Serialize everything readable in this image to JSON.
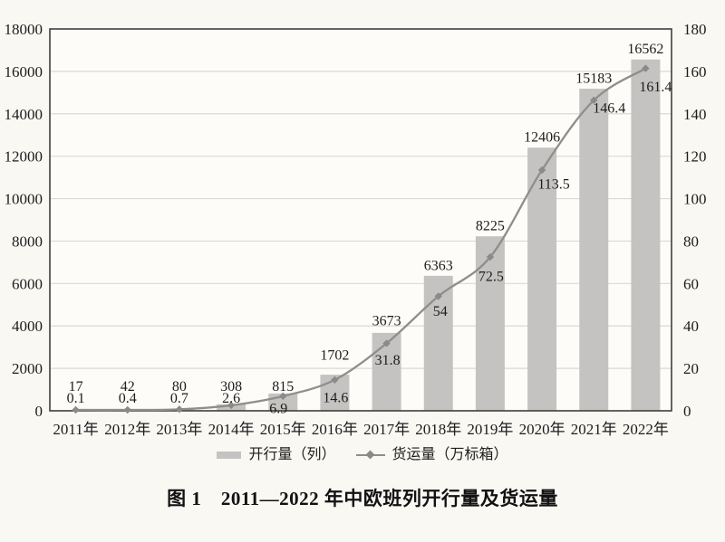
{
  "chart_data": {
    "type": "bar+line combo",
    "title": "图 1　2011—2022 年中欧班列开行量及货运量",
    "categories": [
      "2011年",
      "2012年",
      "2013年",
      "2014年",
      "2015年",
      "2016年",
      "2017年",
      "2018年",
      "2019年",
      "2020年",
      "2021年",
      "2022年"
    ],
    "series": [
      {
        "name": "开行量（列）",
        "type": "bar",
        "axis": "left",
        "color": "#c4c3c1",
        "values": [
          17,
          42,
          80,
          308,
          815,
          1702,
          3673,
          6363,
          8225,
          12406,
          15183,
          16562
        ],
        "labels": [
          "17",
          "42",
          "80",
          "308",
          "815",
          "1702",
          "3673",
          "6363",
          "8225",
          "12406",
          "15183",
          "16562"
        ]
      },
      {
        "name": "货运量（万标箱）",
        "type": "line",
        "axis": "right",
        "color": "#8f8e8c",
        "marker": "diamond",
        "marker_color": "#8a8a88",
        "values": [
          0.1,
          0.4,
          0.7,
          2.6,
          6.9,
          14.6,
          31.8,
          54,
          72.5,
          113.5,
          146.4,
          161.4
        ],
        "labels": [
          "0.1",
          "0.4",
          "0.7",
          "2.6",
          "6.9",
          "14.6",
          "31.8",
          "54",
          "72.5",
          "113.5",
          "146.4",
          "161.4"
        ]
      }
    ],
    "left_axis": {
      "min": 0,
      "max": 18000,
      "step": 2000
    },
    "right_axis": {
      "min": 0,
      "max": 180,
      "step": 20
    },
    "grid": true,
    "legend_position": "bottom",
    "colors": {
      "page_background": "#faf8f3",
      "plot_background": "#fdfcf9",
      "grid_line": "#dcd9d3",
      "frame": "#3f3f3f",
      "text": "#1d1d1d"
    }
  }
}
